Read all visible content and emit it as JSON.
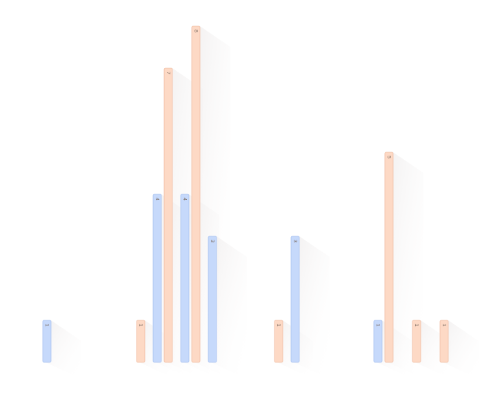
{
  "chart_data": {
    "type": "bar",
    "categories": [
      null,
      null,
      null,
      null,
      null,
      null,
      null,
      null,
      null,
      null,
      null,
      null,
      null,
      null,
      null
    ],
    "series": [
      {
        "color": "#c6d9fb",
        "values": [
          1,
          null,
          null,
          null,
          4,
          4,
          3,
          null,
          null,
          3,
          null,
          null,
          1,
          null,
          null
        ]
      },
      {
        "color": "#fdd9c5",
        "values": [
          null,
          null,
          null,
          1,
          7,
          8,
          null,
          null,
          1,
          null,
          null,
          null,
          5,
          1,
          1
        ]
      }
    ],
    "ylim": [
      0,
      8
    ]
  }
}
